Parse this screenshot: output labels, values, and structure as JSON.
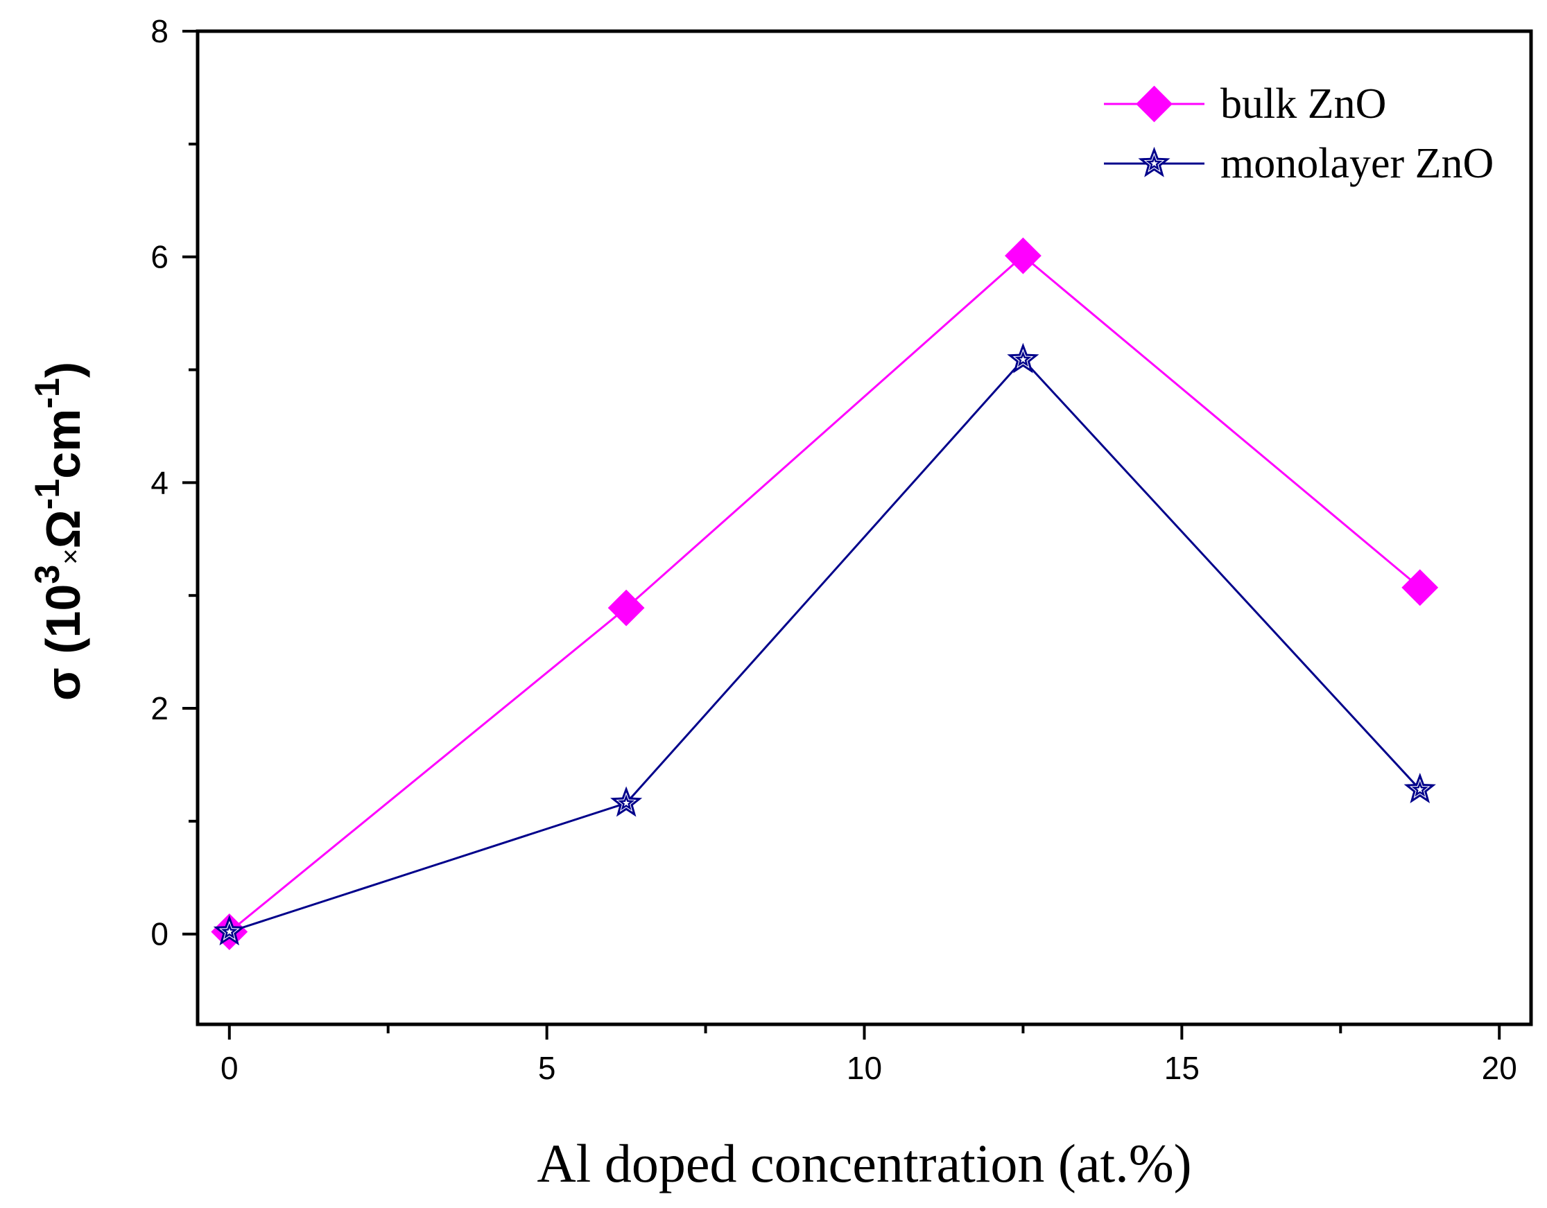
{
  "chart_data": {
    "type": "line",
    "title": "",
    "xlabel": "Al doped concentration (at.%)",
    "ylabel": {
      "sigma": "σ",
      "open": " (10",
      "exp3": "3",
      "times": "×",
      "omega": "Ω",
      "exp_neg1_a": "-1",
      "cm": "cm",
      "exp_neg1_b": "-1",
      "close": ")"
    },
    "xlim": [
      -0.5,
      20.5
    ],
    "ylim": [
      -0.8,
      8
    ],
    "xticks": [
      0,
      5,
      10,
      15,
      20
    ],
    "xtick_labels": [
      "0",
      "5",
      "10",
      "15",
      "20"
    ],
    "xminor_ticks": [
      2.5,
      7.5,
      12.5,
      17.5
    ],
    "yticks": [
      0,
      2,
      4,
      6,
      8
    ],
    "ytick_labels": [
      "0",
      "2",
      "4",
      "6",
      "8"
    ],
    "yminor_ticks": [
      1,
      3,
      5,
      7
    ],
    "grid": false,
    "legend_position": "top-right",
    "series": [
      {
        "name": "bulk ZnO",
        "color": "#ff00ff",
        "marker": "diamond",
        "x": [
          0,
          6.25,
          12.5,
          18.75
        ],
        "values": [
          0.02,
          2.89,
          6.01,
          3.07
        ]
      },
      {
        "name": "monolayer ZnO",
        "color": "#00008b",
        "marker": "star",
        "x": [
          0,
          6.25,
          12.5,
          18.75
        ],
        "values": [
          0.02,
          1.16,
          5.09,
          1.28
        ]
      }
    ]
  }
}
